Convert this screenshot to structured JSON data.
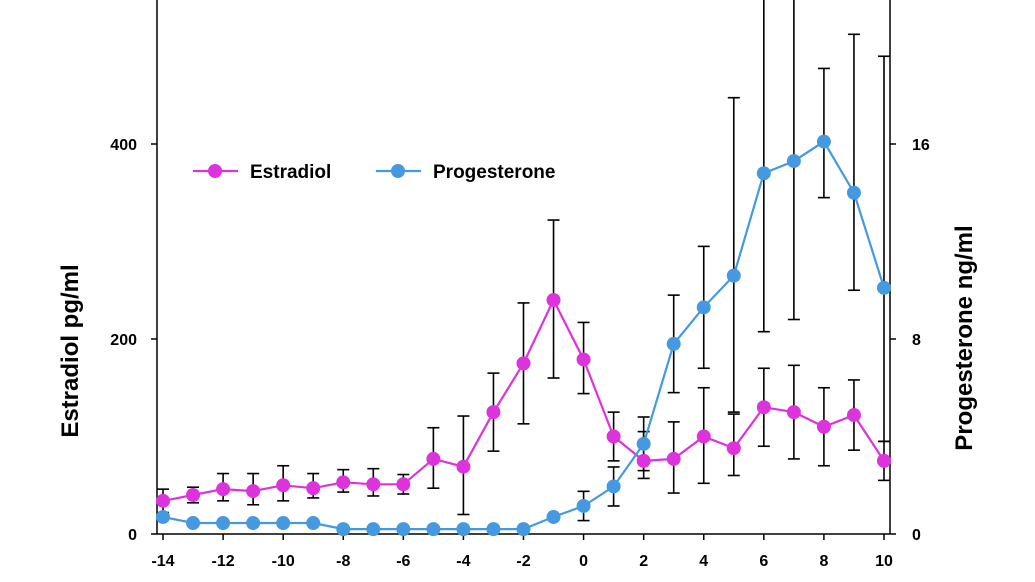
{
  "chart_data": {
    "type": "line",
    "x": [
      -14,
      -13,
      -12,
      -11,
      -10,
      -9,
      -8,
      -7,
      -6,
      -5,
      -4,
      -3,
      -2,
      -1,
      0,
      1,
      2,
      3,
      4,
      5,
      6,
      7,
      8,
      9,
      10
    ],
    "x_ticks": [
      -14,
      -12,
      -10,
      -8,
      -6,
      -4,
      -2,
      0,
      2,
      4,
      6,
      8,
      10
    ],
    "x_tick_labels": [
      "-14",
      "-12",
      "-10",
      "-8",
      "-6",
      "-4",
      "-2",
      "0",
      "2",
      "4",
      "6",
      "8",
      "10"
    ],
    "xlim": [
      -14.2,
      10.2
    ],
    "y_left": {
      "label": "Estradiol pg/ml",
      "ylim": [
        0,
        400
      ],
      "ticks": [
        0,
        200,
        400
      ],
      "tick_labels": [
        "0",
        "200",
        "400"
      ]
    },
    "y_right": {
      "label": "Progesterone ng/ml",
      "ylim": [
        0,
        16
      ],
      "ticks": [
        0,
        8,
        16
      ],
      "tick_labels": [
        "0",
        "8",
        "16"
      ]
    },
    "legend_position": "top-left",
    "grid": false,
    "series": [
      {
        "name": "Estradiol",
        "axis": "left",
        "color": "#dd33dd",
        "values": [
          34,
          40,
          46,
          44,
          50,
          47,
          53,
          51,
          51,
          77,
          69,
          125,
          175,
          240,
          179,
          100,
          75,
          77,
          100,
          88,
          130,
          125,
          110,
          122,
          75
        ],
        "err_upper": [
          12,
          8,
          16,
          18,
          20,
          15,
          13,
          16,
          10,
          32,
          52,
          40,
          62,
          82,
          38,
          25,
          30,
          38,
          50,
          35,
          40,
          48,
          40,
          36,
          20
        ],
        "err_lower": [
          12,
          8,
          12,
          14,
          16,
          10,
          10,
          12,
          10,
          30,
          49,
          40,
          62,
          80,
          35,
          25,
          18,
          35,
          48,
          28,
          40,
          48,
          40,
          36,
          20
        ]
      },
      {
        "name": "Progesterone",
        "axis": "right",
        "color": "#4499e0",
        "values": [
          0.7,
          0.45,
          0.45,
          0.45,
          0.45,
          0.45,
          0.2,
          0.2,
          0.2,
          0.2,
          0.2,
          0.2,
          0.2,
          0.7,
          1.15,
          1.95,
          3.7,
          7.8,
          9.3,
          10.6,
          14.8,
          15.3,
          16.1,
          14.0,
          10.1
        ],
        "err_upper": [
          0,
          0,
          0,
          0,
          0,
          0,
          0,
          0,
          0,
          0,
          0,
          0,
          0,
          0,
          0.6,
          0.8,
          1.1,
          2.0,
          2.5,
          7.3,
          9.5,
          9.5,
          3.0,
          6.5,
          9.5
        ],
        "err_lower": [
          0,
          0,
          0,
          0,
          0,
          0,
          0,
          0,
          0,
          0,
          0,
          0,
          0,
          0,
          0.6,
          0.8,
          1.1,
          2.0,
          2.5,
          5.6,
          6.5,
          6.5,
          2.3,
          4.0,
          6.3
        ]
      }
    ]
  }
}
